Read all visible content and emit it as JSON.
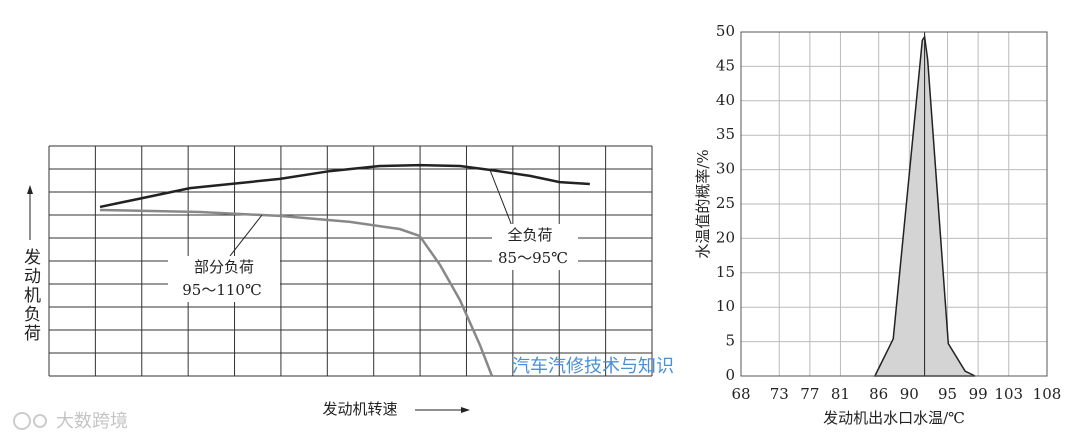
{
  "chart_data": [
    {
      "type": "line",
      "x_label": "发动机转速",
      "y_label": "发动机负荷",
      "xlim": [
        0,
        13
      ],
      "ylim": [
        0,
        10
      ],
      "series": [
        {
          "name": "全负荷",
          "color": "#222222",
          "x": [
            1.1,
            3.04,
            4.98,
            6.06,
            7.13,
            7.99,
            8.86,
            9.5,
            10.37,
            11.01,
            11.66
          ],
          "values": [
            7.35,
            8.17,
            8.57,
            8.91,
            9.13,
            9.17,
            9.13,
            8.96,
            8.7,
            8.43,
            8.35
          ]
        },
        {
          "name": "部分负荷",
          "color": "#888888",
          "x": [
            1.1,
            3.25,
            4.98,
            6.49,
            7.56,
            7.99,
            8.43,
            8.86,
            9.29,
            9.55
          ],
          "values": [
            7.22,
            7.13,
            6.96,
            6.7,
            6.39,
            6.09,
            4.83,
            3.3,
            1.35,
            0
          ]
        }
      ],
      "annotations": [
        "85～95℃",
        "95～110℃"
      ]
    },
    {
      "type": "area",
      "x_label": "发动机出水口水温/℃",
      "y_label": "水温值的概率/%",
      "xlim": [
        68,
        108
      ],
      "ylim": [
        0,
        50
      ],
      "xticks": [
        68,
        73,
        77,
        81,
        86,
        90,
        95,
        99,
        103,
        108
      ],
      "yticks": [
        0,
        5,
        10,
        15,
        20,
        25,
        30,
        35,
        40,
        45,
        50
      ],
      "grid": true,
      "color": "#d4d4d4",
      "x": [
        85.5,
        87.9,
        91.7,
        92.0,
        92.4,
        95.1,
        97.3,
        98.6
      ],
      "values": [
        0,
        5.4,
        48.8,
        49.3,
        46,
        4.7,
        0.7,
        0
      ]
    }
  ],
  "watermarks": [
    "汽车汽修技术与知识",
    "大数跨境"
  ]
}
